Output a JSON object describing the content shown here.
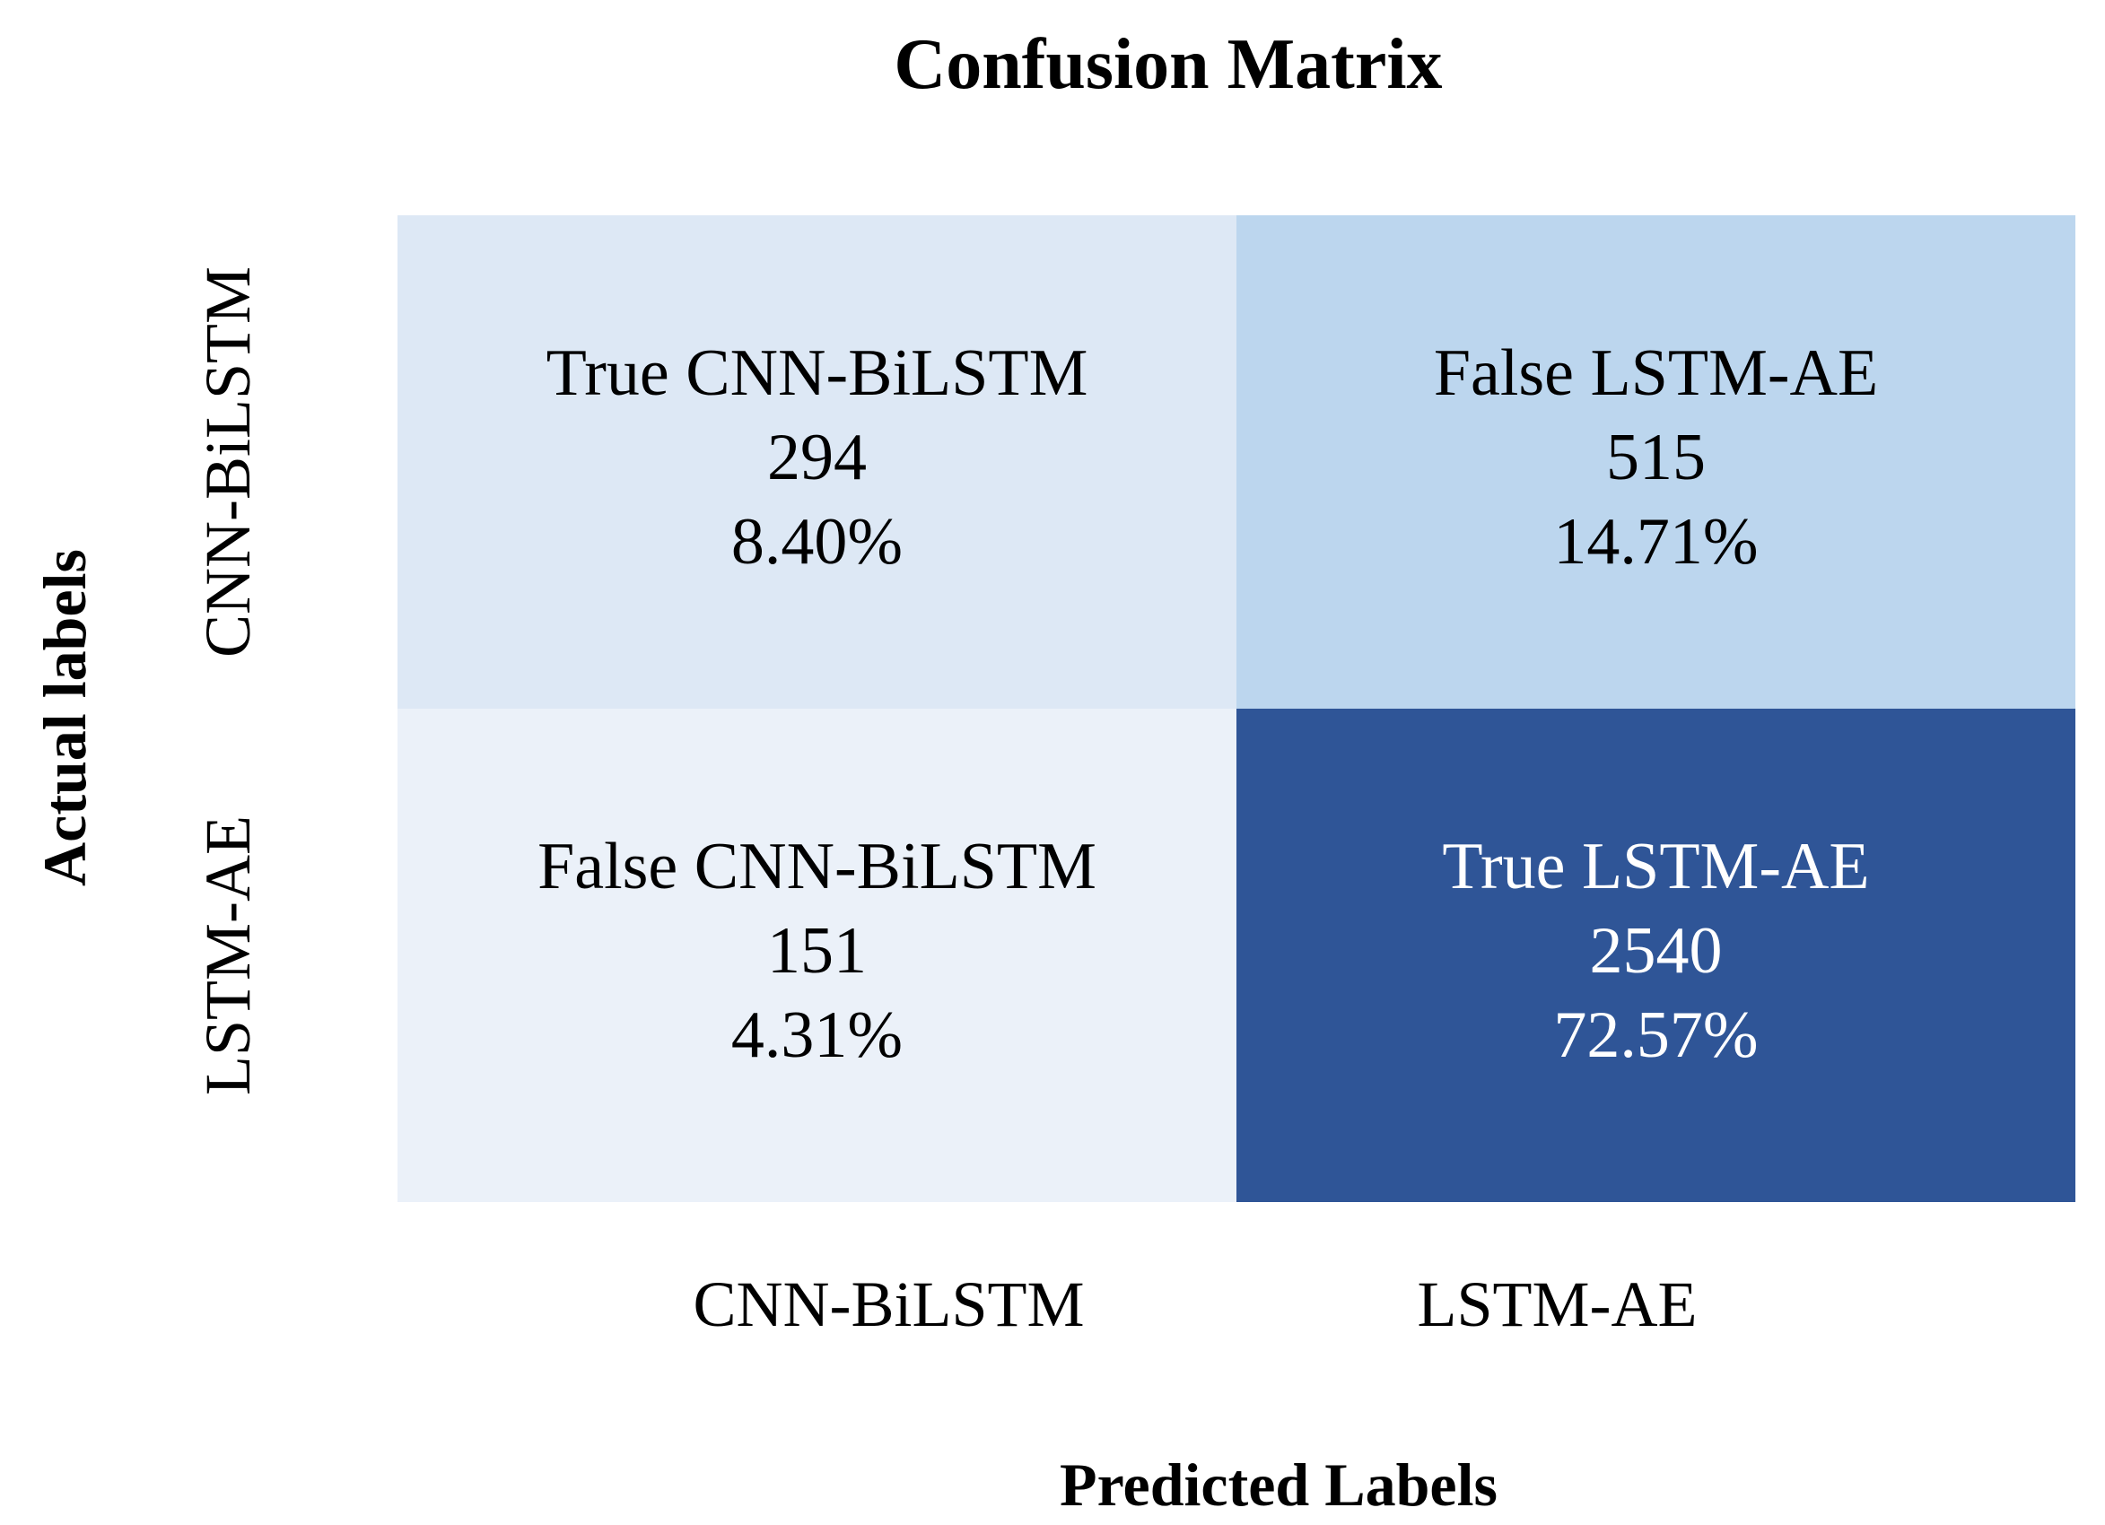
{
  "chart_data": {
    "type": "heatmap",
    "title": "Confusion Matrix",
    "xlabel": "Predicted Labels",
    "ylabel": "Actual labels",
    "x_categories": [
      "CNN-BiLSTM",
      "LSTM-AE"
    ],
    "y_categories": [
      "CNN-BiLSTM",
      "LSTM-AE"
    ],
    "cells": [
      {
        "row": 0,
        "col": 0,
        "label": "True CNN-BiLSTM",
        "count": "294",
        "percent": "8.40%",
        "value": 294,
        "color": "#dde8f5",
        "text_color": "#000000"
      },
      {
        "row": 0,
        "col": 1,
        "label": "False LSTM-AE",
        "count": "515",
        "percent": "14.71%",
        "value": 515,
        "color": "#bcd6ee",
        "text_color": "#000000"
      },
      {
        "row": 1,
        "col": 0,
        "label": "False CNN-BiLSTM",
        "count": "151",
        "percent": "4.31%",
        "value": 151,
        "color": "#ebf1f9",
        "text_color": "#000000"
      },
      {
        "row": 1,
        "col": 1,
        "label": "True LSTM-AE",
        "count": "2540",
        "percent": "72.57%",
        "value": 2540,
        "color": "#2f5597",
        "text_color": "#ffffff"
      }
    ]
  }
}
